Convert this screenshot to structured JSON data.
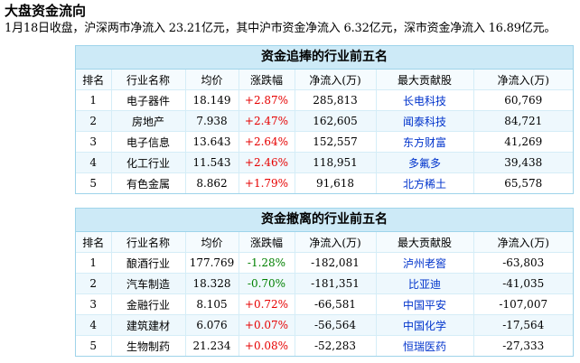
{
  "page": {
    "title": "大盘资金流向",
    "summary": "1月18日收盘，沪深两市净流入 23.21亿元，其中沪市资金净流入 6.32亿元，深市资金净流入 16.89亿元。"
  },
  "inflow": {
    "title": "资金追捧的行业前五名",
    "headers": [
      "排名",
      "行业名称",
      "均价",
      "涨跌幅",
      "净流入(万)",
      "最大贡献股",
      "净流入(万)"
    ],
    "rows": [
      [
        "1",
        "电子器件",
        "18.149",
        "+2.87%",
        "285,813",
        "长电科技",
        "60,769"
      ],
      [
        "2",
        "房地产",
        "7.938",
        "+2.47%",
        "162,605",
        "闻泰科技",
        "84,721"
      ],
      [
        "3",
        "电子信息",
        "13.643",
        "+2.64%",
        "152,557",
        "东方财富",
        "41,269"
      ],
      [
        "4",
        "化工行业",
        "11.543",
        "+2.46%",
        "118,951",
        "多氟多",
        "39,438"
      ],
      [
        "5",
        "有色金属",
        "8.862",
        "+1.79%",
        "91,618",
        "北方稀土",
        "65,578"
      ]
    ]
  },
  "outflow": {
    "title": "资金撤离的行业前五名",
    "headers": [
      "排名",
      "行业名称",
      "均价",
      "涨跌幅",
      "净流入(万)",
      "最大贡献股",
      "净流入(万)"
    ],
    "rows": [
      [
        "1",
        "酿酒行业",
        "177.769",
        "-1.28%",
        "-182,081",
        "泸州老窖",
        "-63,803"
      ],
      [
        "2",
        "汽车制造",
        "18.328",
        "-0.70%",
        "-181,351",
        "比亚迪",
        "-41,035"
      ],
      [
        "3",
        "金融行业",
        "8.105",
        "+0.72%",
        "-66,581",
        "中国平安",
        "-107,007"
      ],
      [
        "4",
        "建筑建材",
        "6.076",
        "+0.07%",
        "-56,564",
        "中国化学",
        "-17,564"
      ],
      [
        "5",
        "生物制药",
        "21.234",
        "+0.08%",
        "-52,283",
        "恒瑞医药",
        "-27,333"
      ]
    ]
  },
  "colors": {
    "rise": "#e60000",
    "fall": "#008000",
    "stock_link": "#0033cc",
    "panel_header_bg": "#cdeaf7"
  }
}
